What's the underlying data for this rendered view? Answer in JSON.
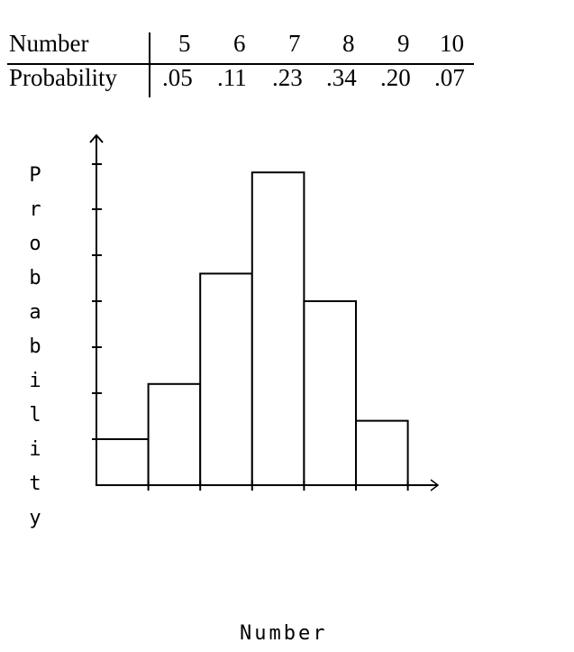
{
  "table": {
    "header_label": "Number",
    "values_label": "Probability",
    "numbers": [
      "5",
      "6",
      "7",
      "8",
      "9",
      "10"
    ],
    "probabilities": [
      ".05",
      ".11",
      ".23",
      ".34",
      ".20",
      ".07"
    ]
  },
  "chart_data": {
    "type": "bar",
    "categories": [
      "5",
      "6",
      "7",
      "8",
      "9",
      "10"
    ],
    "values": [
      0.05,
      0.11,
      0.23,
      0.34,
      0.2,
      0.07
    ],
    "xlabel": "Number",
    "ylabel": "Probability",
    "ylim": [
      0,
      0.35
    ],
    "grid": false
  }
}
